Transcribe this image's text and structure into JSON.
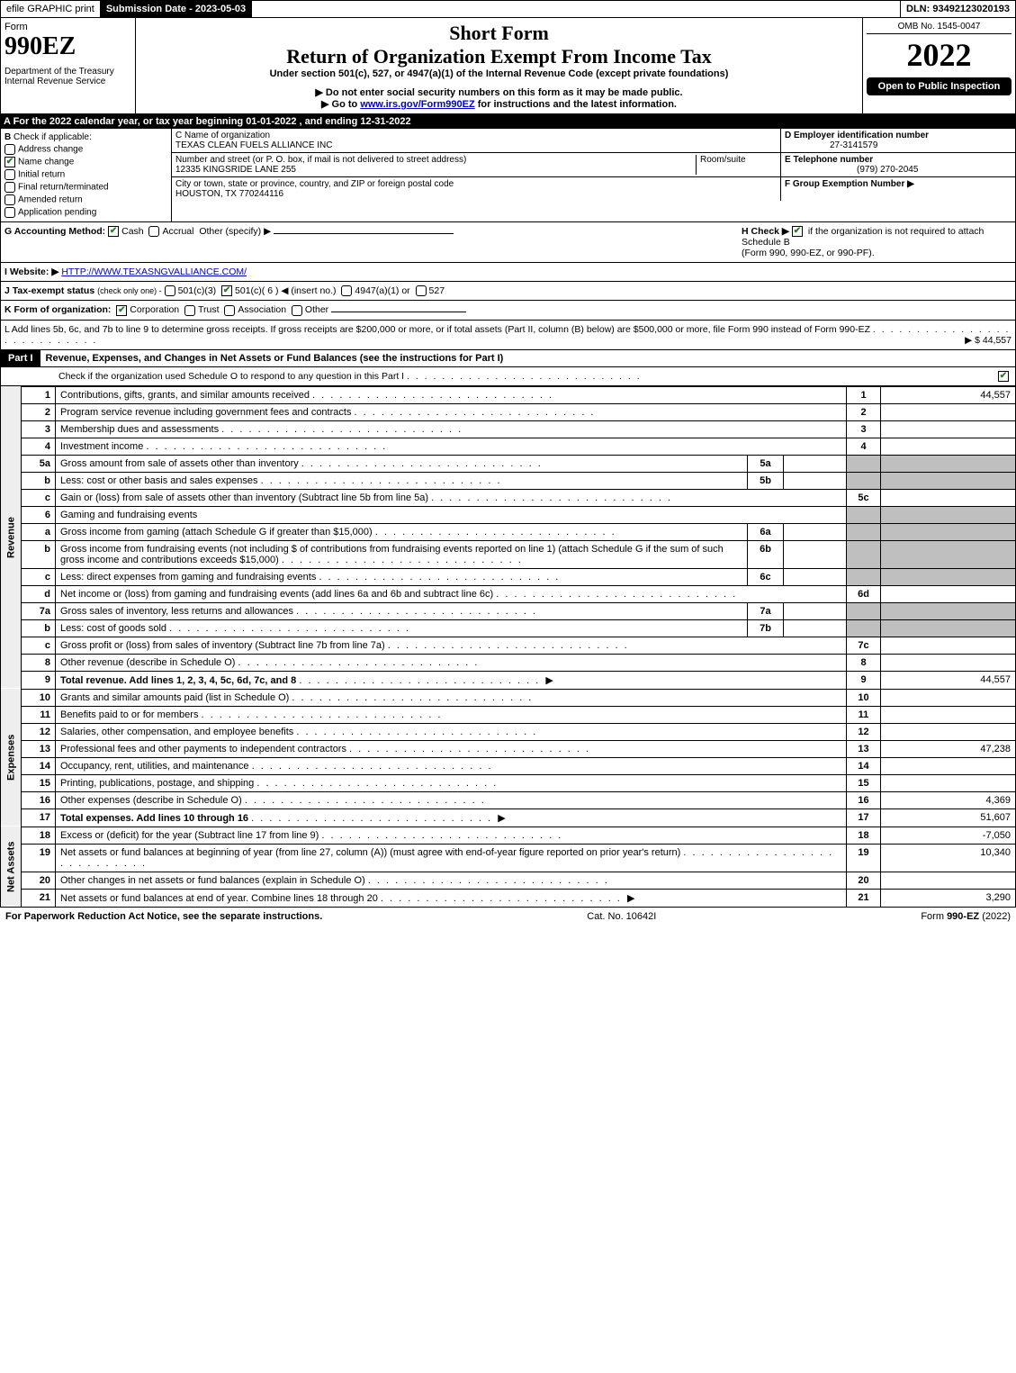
{
  "topbar": {
    "efile": "efile GRAPHIC print",
    "submission_label": "Submission Date - 2023-05-03",
    "dln": "DLN: 93492123020193"
  },
  "header": {
    "form_word": "Form",
    "form_no": "990EZ",
    "dept1": "Department of the Treasury",
    "dept2": "Internal Revenue Service",
    "title_short": "Short Form",
    "title_main": "Return of Organization Exempt From Income Tax",
    "subtitle": "Under section 501(c), 527, or 4947(a)(1) of the Internal Revenue Code (except private foundations)",
    "note1": "▶ Do not enter social security numbers on this form as it may be made public.",
    "note2_pre": "▶ Go to ",
    "note2_link": "www.irs.gov/Form990EZ",
    "note2_post": " for instructions and the latest information.",
    "omb": "OMB No. 1545-0047",
    "year": "2022",
    "open": "Open to Public Inspection"
  },
  "A": {
    "text": "A  For the 2022 calendar year, or tax year beginning 01-01-2022 , and ending 12-31-2022"
  },
  "B": {
    "label": "B",
    "check_if": "Check if applicable:",
    "items": [
      {
        "label": "Address change",
        "checked": false,
        "round": true
      },
      {
        "label": "Name change",
        "checked": true,
        "round": false
      },
      {
        "label": "Initial return",
        "checked": false,
        "round": true
      },
      {
        "label": "Final return/terminated",
        "checked": false,
        "round": true
      },
      {
        "label": "Amended return",
        "checked": false,
        "round": true
      },
      {
        "label": "Application pending",
        "checked": false,
        "round": true
      }
    ]
  },
  "C": {
    "label": "C Name of organization",
    "name": "TEXAS CLEAN FUELS ALLIANCE INC",
    "street_label": "Number and street (or P. O. box, if mail is not delivered to street address)",
    "street": "12335 KINGSRIDE LANE 255",
    "room_label": "Room/suite",
    "city_label": "City or town, state or province, country, and ZIP or foreign postal code",
    "city": "HOUSTON, TX  770244116"
  },
  "D": {
    "label": "D Employer identification number",
    "value": "27-3141579"
  },
  "E": {
    "label": "E Telephone number",
    "value": "(979) 270-2045"
  },
  "F": {
    "label": "F Group Exemption Number   ▶",
    "value": ""
  },
  "G": {
    "label": "G Accounting Method:",
    "cash": "Cash",
    "accrual": "Accrual",
    "other": "Other (specify) ▶",
    "cash_checked": true
  },
  "H": {
    "text1": "H  Check ▶",
    "text2": "if the organization is not required to attach Schedule B",
    "text3": "(Form 990, 990-EZ, or 990-PF).",
    "checked": true
  },
  "I": {
    "label": "I Website: ▶",
    "value": "HTTP://WWW.TEXASNGVALLIANCE.COM/"
  },
  "J": {
    "label": "J Tax-exempt status",
    "note": "(check only one) -",
    "c3": "501(c)(3)",
    "c_checked": true,
    "c": "501(c)( 6 ) ◀ (insert no.)",
    "a1": "4947(a)(1) or",
    "s527": "527"
  },
  "K": {
    "label": "K Form of organization:",
    "corp": "Corporation",
    "corp_checked": true,
    "trust": "Trust",
    "assoc": "Association",
    "other": "Other"
  },
  "L": {
    "text": "L Add lines 5b, 6c, and 7b to line 9 to determine gross receipts. If gross receipts are $200,000 or more, or if total assets (Part II, column (B) below) are $500,000 or more, file Form 990 instead of Form 990-EZ",
    "amount": "▶ $ 44,557"
  },
  "part1": {
    "tag": "Part I",
    "title": "Revenue, Expenses, and Changes in Net Assets or Fund Balances (see the instructions for Part I)",
    "check_line": "Check if the organization used Schedule O to respond to any question in this Part I",
    "checked": true,
    "sections": {
      "revenue": "Revenue",
      "expenses": "Expenses",
      "net": "Net Assets"
    },
    "lines": [
      {
        "n": "1",
        "d": "Contributions, gifts, grants, and similar amounts received",
        "lab": "1",
        "amt": "44,557"
      },
      {
        "n": "2",
        "d": "Program service revenue including government fees and contracts",
        "lab": "2",
        "amt": ""
      },
      {
        "n": "3",
        "d": "Membership dues and assessments",
        "lab": "3",
        "amt": ""
      },
      {
        "n": "4",
        "d": "Investment income",
        "lab": "4",
        "amt": ""
      },
      {
        "n": "5a",
        "d": "Gross amount from sale of assets other than inventory",
        "sub": "5a",
        "subamt": "",
        "gray": true
      },
      {
        "n": "b",
        "d": "Less: cost or other basis and sales expenses",
        "sub": "5b",
        "subamt": "",
        "gray": true
      },
      {
        "n": "c",
        "d": "Gain or (loss) from sale of assets other than inventory (Subtract line 5b from line 5a)",
        "lab": "5c",
        "amt": ""
      },
      {
        "n": "6",
        "d": "Gaming and fundraising events",
        "gray": true,
        "nolinelab": true
      },
      {
        "n": "a",
        "d": "Gross income from gaming (attach Schedule G if greater than $15,000)",
        "sub": "6a",
        "subamt": "",
        "gray": true
      },
      {
        "n": "b",
        "d": "Gross income from fundraising events (not including $                    of contributions from fundraising events reported on line 1) (attach Schedule G if the sum of such gross income and contributions exceeds $15,000)",
        "sub": "6b",
        "subamt": "",
        "gray": true
      },
      {
        "n": "c",
        "d": "Less: direct expenses from gaming and fundraising events",
        "sub": "6c",
        "subamt": "",
        "gray": true
      },
      {
        "n": "d",
        "d": "Net income or (loss) from gaming and fundraising events (add lines 6a and 6b and subtract line 6c)",
        "lab": "6d",
        "amt": ""
      },
      {
        "n": "7a",
        "d": "Gross sales of inventory, less returns and allowances",
        "sub": "7a",
        "subamt": "",
        "gray": true
      },
      {
        "n": "b",
        "d": "Less: cost of goods sold",
        "sub": "7b",
        "subamt": "",
        "gray": true
      },
      {
        "n": "c",
        "d": "Gross profit or (loss) from sales of inventory (Subtract line 7b from line 7a)",
        "lab": "7c",
        "amt": ""
      },
      {
        "n": "8",
        "d": "Other revenue (describe in Schedule O)",
        "lab": "8",
        "amt": ""
      },
      {
        "n": "9",
        "d": "Total revenue. Add lines 1, 2, 3, 4, 5c, 6d, 7c, and 8",
        "lab": "9",
        "amt": "44,557",
        "bold": true,
        "arrow": true
      }
    ],
    "exp_lines": [
      {
        "n": "10",
        "d": "Grants and similar amounts paid (list in Schedule O)",
        "lab": "10",
        "amt": ""
      },
      {
        "n": "11",
        "d": "Benefits paid to or for members",
        "lab": "11",
        "amt": ""
      },
      {
        "n": "12",
        "d": "Salaries, other compensation, and employee benefits",
        "lab": "12",
        "amt": ""
      },
      {
        "n": "13",
        "d": "Professional fees and other payments to independent contractors",
        "lab": "13",
        "amt": "47,238"
      },
      {
        "n": "14",
        "d": "Occupancy, rent, utilities, and maintenance",
        "lab": "14",
        "amt": ""
      },
      {
        "n": "15",
        "d": "Printing, publications, postage, and shipping",
        "lab": "15",
        "amt": ""
      },
      {
        "n": "16",
        "d": "Other expenses (describe in Schedule O)",
        "lab": "16",
        "amt": "4,369"
      },
      {
        "n": "17",
        "d": "Total expenses. Add lines 10 through 16",
        "lab": "17",
        "amt": "51,607",
        "bold": true,
        "arrow": true
      }
    ],
    "net_lines": [
      {
        "n": "18",
        "d": "Excess or (deficit) for the year (Subtract line 17 from line 9)",
        "lab": "18",
        "amt": "-7,050"
      },
      {
        "n": "19",
        "d": "Net assets or fund balances at beginning of year (from line 27, column (A)) (must agree with end-of-year figure reported on prior year's return)",
        "lab": "19",
        "amt": "10,340"
      },
      {
        "n": "20",
        "d": "Other changes in net assets or fund balances (explain in Schedule O)",
        "lab": "20",
        "amt": ""
      },
      {
        "n": "21",
        "d": "Net assets or fund balances at end of year. Combine lines 18 through 20",
        "lab": "21",
        "amt": "3,290",
        "arrow": true
      }
    ]
  },
  "footer": {
    "left": "For Paperwork Reduction Act Notice, see the separate instructions.",
    "mid": "Cat. No. 10642I",
    "right": "Form 990-EZ (2022)"
  }
}
